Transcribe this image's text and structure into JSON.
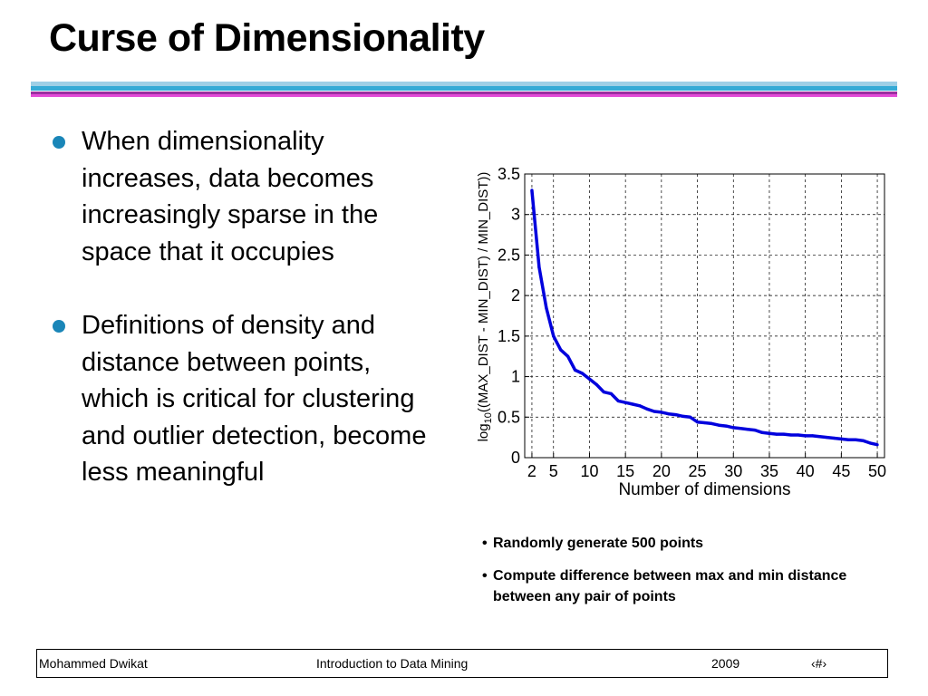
{
  "title": "Curse of Dimensionality",
  "bullets": [
    "When dimensionality increases, data becomes increasingly sparse in the space that it occupies",
    "Definitions of density and distance between points, which is critical for clustering and outlier detection, become less meaningful"
  ],
  "notes": [
    "Randomly generate 500 points",
    "Compute difference between max and min distance between any pair of points"
  ],
  "footer": {
    "author": "Mohammed Dwikat",
    "course": "Introduction to Data Mining",
    "year": "2009",
    "page": "‹#›"
  },
  "colors": {
    "series": "#0000dd",
    "bullet": "#1a86b8"
  },
  "chart_data": {
    "type": "line",
    "xlabel": "Number of dimensions",
    "ylabel_prefix": "log",
    "ylabel_sub": "10",
    "ylabel_suffix": "((MAX_DIST - MIN_DIST) / MIN_DIST))",
    "xlim": [
      1,
      51
    ],
    "ylim": [
      0,
      3.5
    ],
    "xticks": [
      2,
      5,
      10,
      15,
      20,
      25,
      30,
      35,
      40,
      45,
      50
    ],
    "yticks": [
      0,
      0.5,
      1,
      1.5,
      2,
      2.5,
      3,
      3.5
    ],
    "ytick_labels": [
      "0",
      "0.5",
      "1",
      "1.5",
      "2",
      "2.5",
      "3",
      "3.5"
    ],
    "grid": true,
    "series": [
      {
        "x": [
          2,
          3,
          4,
          5,
          6,
          7,
          8,
          9,
          10,
          11,
          12,
          13,
          14,
          15,
          16,
          17,
          18,
          19,
          20,
          21,
          22,
          23,
          24,
          25,
          26,
          27,
          28,
          29,
          30,
          31,
          32,
          33,
          34,
          35,
          36,
          37,
          38,
          39,
          40,
          41,
          42,
          43,
          44,
          45,
          46,
          47,
          48,
          49,
          50
        ],
        "values": [
          3.3,
          2.35,
          1.85,
          1.5,
          1.33,
          1.25,
          1.08,
          1.04,
          0.97,
          0.9,
          0.81,
          0.79,
          0.7,
          0.68,
          0.66,
          0.64,
          0.6,
          0.57,
          0.56,
          0.54,
          0.53,
          0.51,
          0.5,
          0.44,
          0.43,
          0.42,
          0.4,
          0.39,
          0.37,
          0.36,
          0.35,
          0.34,
          0.31,
          0.3,
          0.29,
          0.29,
          0.28,
          0.28,
          0.27,
          0.27,
          0.26,
          0.25,
          0.24,
          0.23,
          0.22,
          0.22,
          0.21,
          0.18,
          0.16
        ]
      }
    ]
  }
}
